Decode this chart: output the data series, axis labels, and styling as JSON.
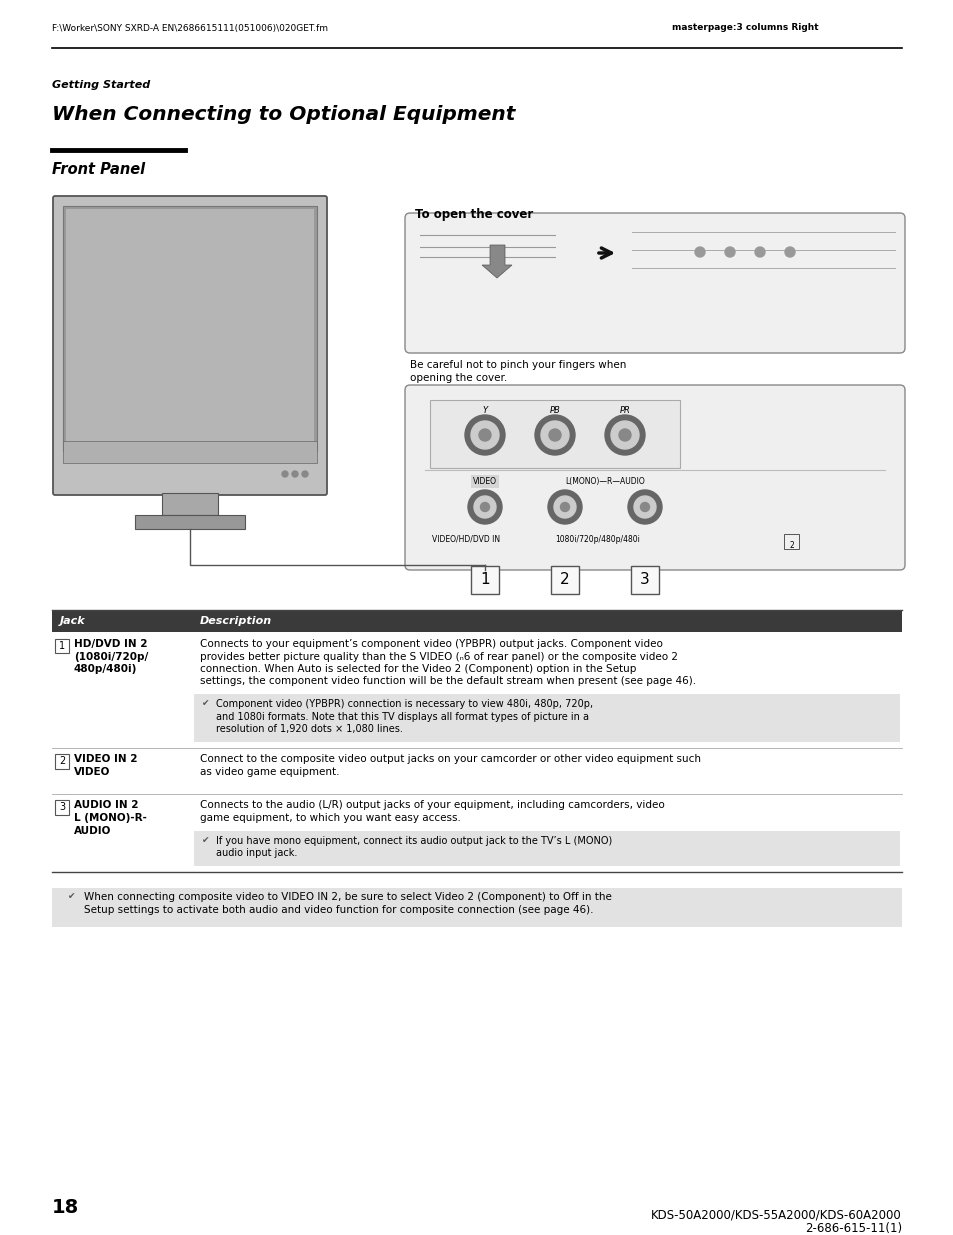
{
  "header_left": "F:\\Worker\\SONY SXRD-A EN\\2686615111(051006)\\020GET.fm",
  "header_right": "masterpage:3 columns Right",
  "section_label": "Getting Started",
  "main_title": "When Connecting to Optional Equipment",
  "sub_title": "Front Panel",
  "cover_label": "To open the cover",
  "cover_caption_1": "Be careful not to pinch your fingers when",
  "cover_caption_2": "opening the cover.",
  "table_col1": "Jack",
  "table_col2": "Description",
  "row1_num": "1",
  "row1_jack": [
    "HD/DVD IN 2",
    "(1080i/720p/",
    "480p/480i)"
  ],
  "row1_desc": [
    "Connects to your equipment’s component video (YPBPR) output jacks. Component video",
    "provides better picture quality than the S VIDEO (ₙ6 of rear panel) or the composite video 2",
    "connection. When Auto is selected for the Video 2 (Component) option in the Setup",
    "settings, the component video function will be the default stream when present (see page 46)."
  ],
  "row1_note": [
    "Component video (YPBPR) connection is necessary to view 480i, 480p, 720p,",
    "and 1080i formats. Note that this TV displays all format types of picture in a",
    "resolution of 1,920 dots × 1,080 lines."
  ],
  "row2_num": "2",
  "row2_jack": [
    "VIDEO IN 2",
    "VIDEO"
  ],
  "row2_desc": [
    "Connect to the composite video output jacks on your camcorder or other video equipment such",
    "as video game equipment."
  ],
  "row3_num": "3",
  "row3_jack": [
    "AUDIO IN 2",
    "L (MONO)-R-",
    "AUDIO"
  ],
  "row3_desc": [
    "Connects to the audio (L/R) output jacks of your equipment, including camcorders, video",
    "game equipment, to which you want easy access."
  ],
  "row3_note": [
    "If you have mono equipment, connect its audio output jack to the TV’s L (MONO)",
    "audio input jack."
  ],
  "bottom_note": [
    "When connecting composite video to VIDEO IN 2, be sure to select Video 2 (Component) to Off in the",
    "Setup settings to activate both audio and video function for composite connection (see page 46)."
  ],
  "page_number": "18",
  "footer_1": "KDS-50A2000/KDS-55A2000/KDS-60A2000",
  "footer_2": "2-686-615-11(1)",
  "bg": "#ffffff",
  "tbl_hdr_bg": "#3a3a3a",
  "tbl_hdr_fg": "#ffffff",
  "note_bg": "#e2e2e2",
  "bot_note_bg": "#e2e2e2"
}
